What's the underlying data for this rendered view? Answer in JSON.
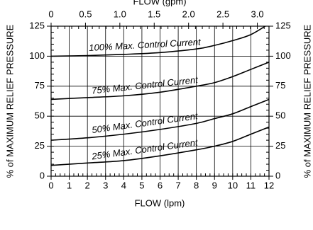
{
  "chart_data": {
    "type": "line",
    "xlabel": "FLOW (lpm)",
    "x2label": "FLOW (gpm)",
    "ylabel": "% of MAXIMUM RELIEF PRESSURE",
    "y2label": "% of MAXIMUM RELIEF PRESSURE",
    "x": [
      0,
      2,
      4,
      6,
      8,
      9,
      10,
      11,
      12
    ],
    "series": [
      {
        "name": "100% Max. Control Current",
        "color": "#000000",
        "values": [
          100,
          100.5,
          101.5,
          103,
          106,
          109,
          113,
          118,
          127
        ]
      },
      {
        "name": "75% Max. Control Current",
        "color": "#000000",
        "values": [
          64,
          65.5,
          67,
          70,
          75,
          78,
          83,
          89,
          95
        ]
      },
      {
        "name": "50% Max. Control Current",
        "color": "#000000",
        "values": [
          30,
          32,
          35,
          39,
          44,
          48,
          52,
          58,
          64
        ]
      },
      {
        "name": "25% Max. Control Current",
        "color": "#000000",
        "values": [
          9,
          11,
          13,
          17,
          22,
          25,
          29,
          35,
          41
        ]
      }
    ],
    "xlim": [
      0,
      12
    ],
    "xticks": [
      0,
      1,
      2,
      3,
      4,
      5,
      6,
      7,
      8,
      9,
      10,
      11,
      12
    ],
    "x2lim": [
      0,
      3.17
    ],
    "x2ticks": [
      0,
      0.5,
      {
        "value": 1,
        "label": "1.0"
      },
      1.5,
      {
        "value": 2,
        "label": "2.0"
      },
      2.5,
      {
        "value": 3,
        "label": "3.0"
      }
    ],
    "ylim": [
      0,
      125
    ],
    "yticks": [
      0,
      25,
      50,
      75,
      100,
      125
    ],
    "y2lim": [
      0,
      125
    ],
    "y2ticks": [
      0,
      25,
      50,
      75,
      100,
      125
    ],
    "grid": true
  }
}
